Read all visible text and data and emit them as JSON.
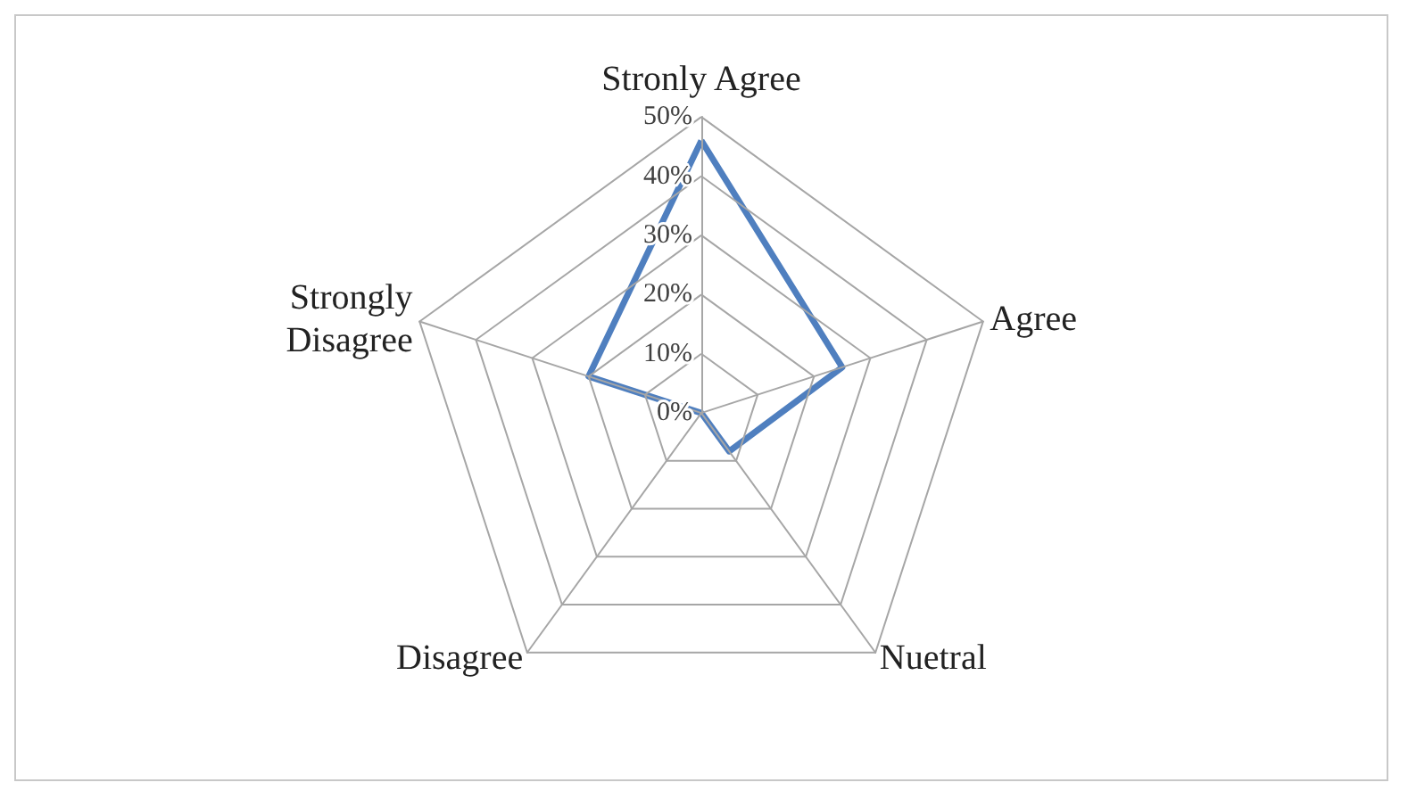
{
  "chart_data": {
    "type": "radar",
    "categories": [
      "Stronly Agree",
      "Agree",
      "Nuetral",
      "Disagree",
      "Strongly\nDisagree"
    ],
    "series": [
      {
        "color": "#4f7fbf",
        "values": [
          46,
          25,
          8,
          0,
          20
        ]
      }
    ],
    "ylim": [
      0,
      50
    ],
    "yticks": [
      {
        "value": 0,
        "label": "0%"
      },
      {
        "value": 10,
        "label": "10%"
      },
      {
        "value": 20,
        "label": "20%"
      },
      {
        "value": 30,
        "label": "30%"
      },
      {
        "value": 40,
        "label": "40%"
      },
      {
        "value": 50,
        "label": "50%"
      }
    ],
    "marker": "none",
    "line_style": "solid"
  }
}
